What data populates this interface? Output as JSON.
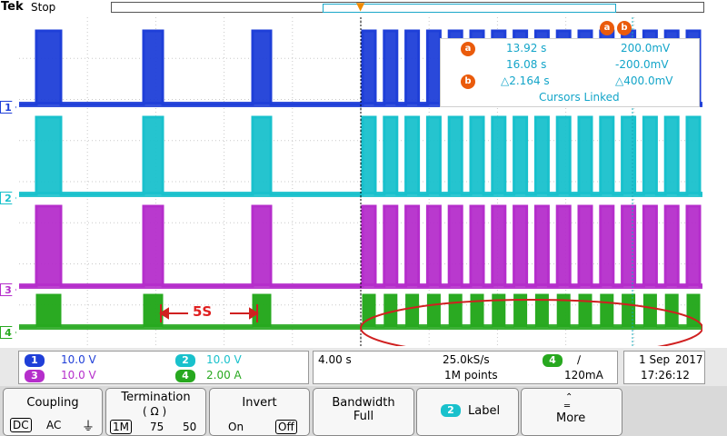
{
  "header": {
    "brand": "Tek",
    "acq_state": "Stop"
  },
  "channels": [
    {
      "num": "1",
      "color": "#1f3fd8"
    },
    {
      "num": "2",
      "color": "#19c1cc"
    },
    {
      "num": "3",
      "color": "#b52ecb"
    },
    {
      "num": "4",
      "color": "#27a81f"
    }
  ],
  "cursors": {
    "a_label": "a",
    "b_label": "b",
    "a_time": "13.92 s",
    "a_volt": "200.0mV",
    "b_time": "16.08 s",
    "b_volt": "-200.0mV",
    "delta_time": "△2.164 s",
    "delta_volt": "△400.0mV",
    "linked": "Cursors Linked"
  },
  "annotation": {
    "text": "5S",
    "color": "#e02020"
  },
  "status": {
    "ch1_scale": "10.0 V",
    "ch2_scale": "10.0 V",
    "ch3_scale": "10.0 V",
    "ch4_scale": "2.00 A",
    "timebase": "4.00 s",
    "sample_rate": "25.0kS/s",
    "record_length": "1M points",
    "trigger_channel": "4",
    "trigger_slope": "∕",
    "trigger_level": "120mA",
    "date_day": "1 Sep",
    "date_year": "2017",
    "time": "17:26:12"
  },
  "menu": {
    "coupling": {
      "title": "Coupling",
      "opts": [
        "DC",
        "AC",
        "⏚"
      ]
    },
    "termination": {
      "title": "Termination",
      "sub": "( Ω )",
      "opts": [
        "1M",
        "75",
        "50"
      ]
    },
    "invert": {
      "title": "Invert",
      "opts": [
        "On",
        "Off"
      ]
    },
    "bandwidth": {
      "title": "Bandwidth",
      "value": "Full"
    },
    "label": {
      "num": "2",
      "title": "Label"
    },
    "more": {
      "title": "More"
    }
  }
}
